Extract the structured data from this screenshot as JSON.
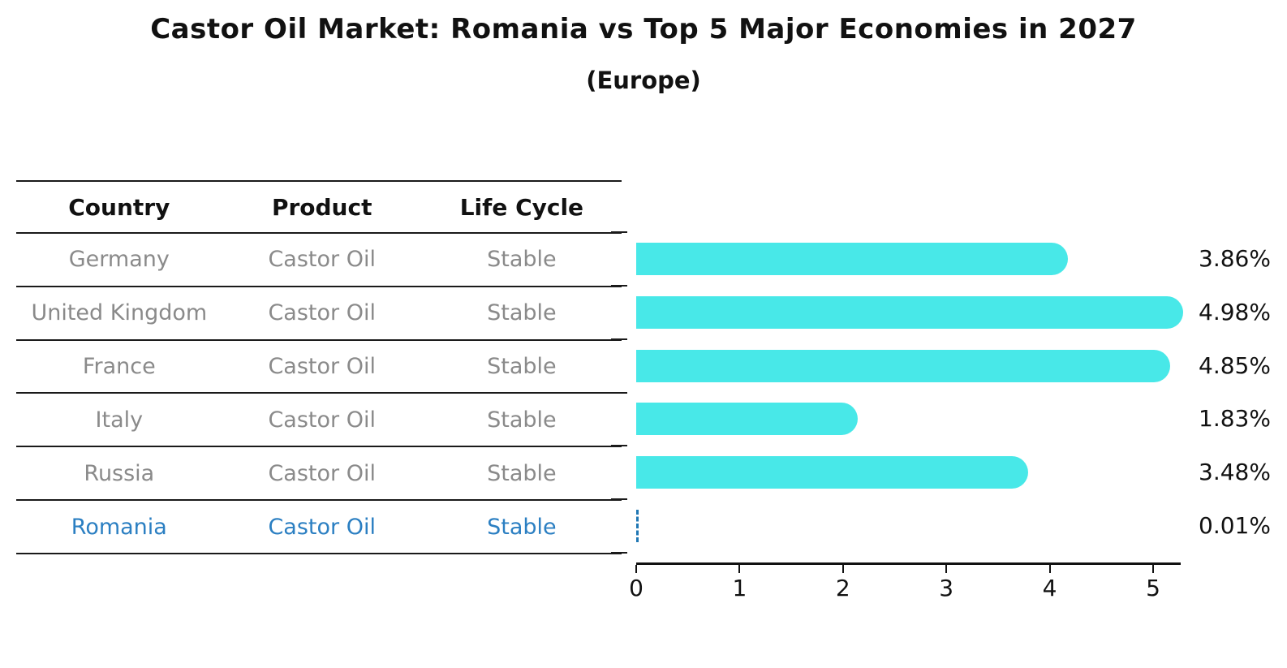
{
  "figure": {
    "title": "Castor Oil Market: Romania vs Top 5 Major Economies in 2027",
    "subtitle": "(Europe)"
  },
  "table": {
    "columns": [
      "Country",
      "Product",
      "Life Cycle"
    ],
    "rows": [
      {
        "country": "Germany",
        "product": "Castor Oil",
        "life_cycle": "Stable",
        "highlighted": false
      },
      {
        "country": "United Kingdom",
        "product": "Castor Oil",
        "life_cycle": "Stable",
        "highlighted": false
      },
      {
        "country": "France",
        "product": "Castor Oil",
        "life_cycle": "Stable",
        "highlighted": false
      },
      {
        "country": "Italy",
        "product": "Castor Oil",
        "life_cycle": "Stable",
        "highlighted": false
      },
      {
        "country": "Russia",
        "product": "Castor Oil",
        "life_cycle": "Stable",
        "highlighted": false
      },
      {
        "country": "Romania",
        "product": "Castor Oil",
        "life_cycle": "Stable",
        "highlighted": true
      }
    ]
  },
  "chart_data": {
    "type": "bar",
    "orientation": "horizontal",
    "title": "Castor Oil Market: Romania vs Top 5 Major Economies in 2027",
    "subtitle": "(Europe)",
    "xlabel": "",
    "ylabel": "",
    "categories": [
      "Germany",
      "United Kingdom",
      "France",
      "Italy",
      "Russia",
      "Romania"
    ],
    "values": [
      3.86,
      4.98,
      4.85,
      1.83,
      3.48,
      0.01
    ],
    "value_labels": [
      "3.86%",
      "4.98%",
      "4.85%",
      "1.83%",
      "3.48%",
      "0.01%"
    ],
    "x_ticks": [
      "0",
      "1",
      "2",
      "3",
      "4",
      "5"
    ],
    "xlim": [
      0,
      5.27
    ],
    "grid": false,
    "legend": false,
    "bar_color": "#48E8E8",
    "highlight_index": 5,
    "highlight_style": "dashed-zero-line",
    "highlight_color": "#1f77b4"
  },
  "colors": {
    "bar": "#48E8E8",
    "row_text": "#8a8a8a",
    "highlight_text": "#2b7fc2",
    "table_line": "#1a1a1a",
    "label_text": "#111111"
  }
}
